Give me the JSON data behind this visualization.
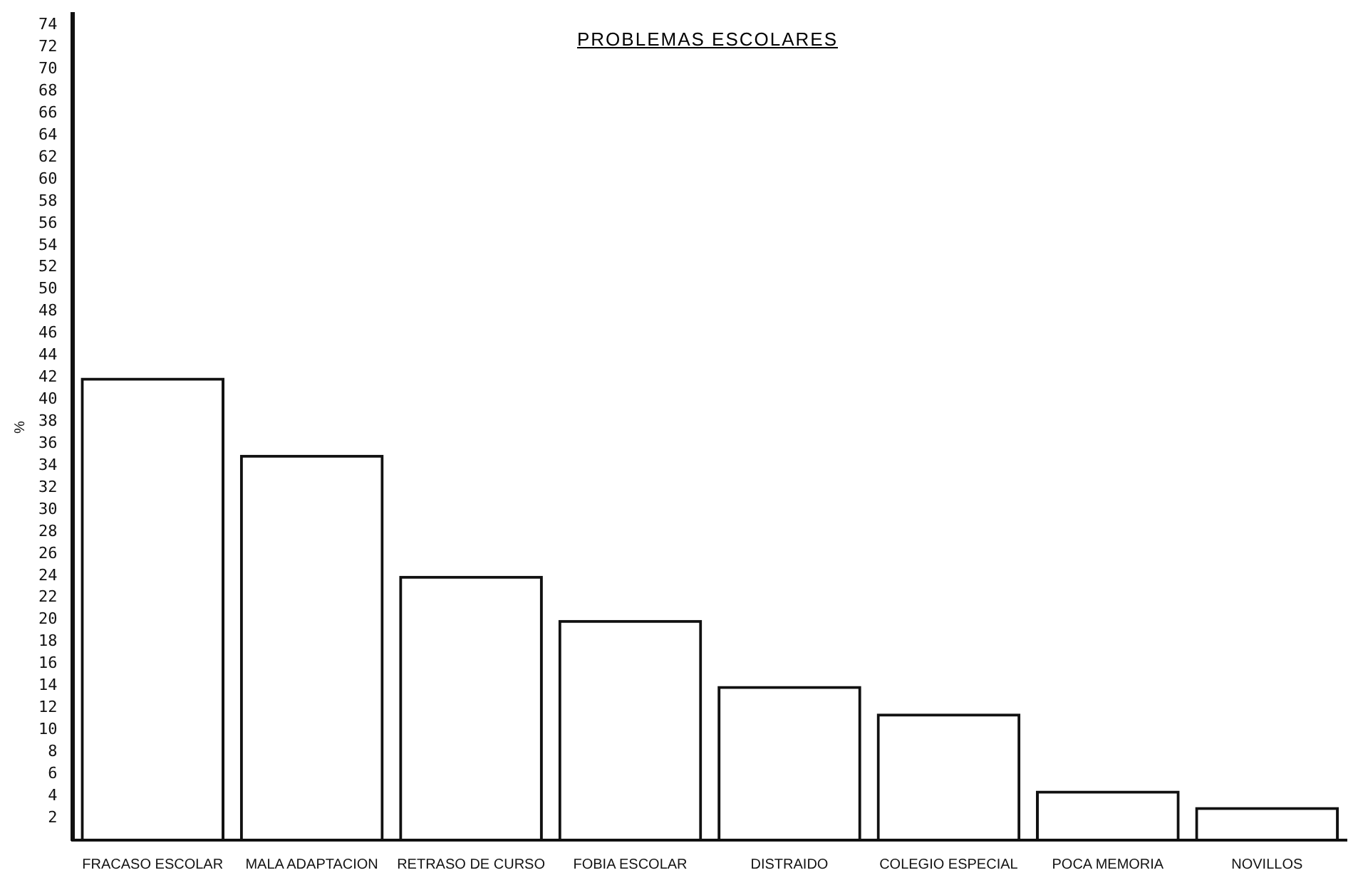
{
  "chart_data": {
    "type": "bar",
    "title": "PROBLEMAS ESCOLARES",
    "ylabel": "%",
    "categories": [
      "FRACASO ESCOLAR",
      "MALA ADAPTACION",
      "RETRASO DE CURSO",
      "FOBIA ESCOLAR",
      "DISTRAIDO",
      "COLEGIO ESPECIAL",
      "POCA MEMORIA",
      "NOVILLOS"
    ],
    "values": [
      42,
      35,
      24,
      20,
      14,
      11.5,
      4.5,
      3
    ],
    "color": "#111111",
    "ylim": [
      0,
      75
    ],
    "yticks": [
      2,
      4,
      6,
      8,
      10,
      12,
      14,
      16,
      18,
      20,
      22,
      24,
      26,
      28,
      30,
      32,
      34,
      36,
      38,
      40,
      42,
      44,
      46,
      48,
      50,
      52,
      54,
      56,
      58,
      60,
      62,
      64,
      66,
      68,
      70,
      72,
      74
    ],
    "grid": false,
    "legend": false
  }
}
